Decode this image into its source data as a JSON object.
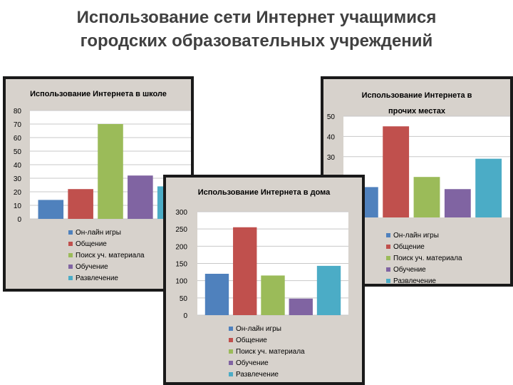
{
  "slide": {
    "title_line1": "Использование сети Интернет учащимися",
    "title_line2": "городских образовательных учреждений"
  },
  "colors": [
    "#4f81bd",
    "#c0504d",
    "#9bbb59",
    "#8064a2",
    "#4bacc6"
  ],
  "chart_data": [
    {
      "id": "school",
      "type": "bar",
      "title": "Использование Интернета в школе",
      "categories": [
        "Он-лайн игры",
        "Общение",
        "Поиск уч. материала",
        "Обучение",
        "Развлечение"
      ],
      "values": [
        14,
        22,
        70,
        32,
        24
      ],
      "ylim": [
        0,
        80
      ],
      "yticks": [
        0,
        10,
        20,
        30,
        40,
        50,
        60,
        70,
        80
      ],
      "legend_position": "bottom"
    },
    {
      "id": "other",
      "type": "bar",
      "title_line1": "Использование Интернета в",
      "title_line2": "прочих местах",
      "categories": [
        "Он-лайн игры",
        "Общение",
        "Поиск уч. материала",
        "Обучение",
        "Развлечение"
      ],
      "values": [
        15,
        45,
        20,
        14,
        29
      ],
      "ylim": [
        0,
        50
      ],
      "yticks": [
        30,
        40,
        50
      ],
      "legend_position": "bottom"
    },
    {
      "id": "home",
      "type": "bar",
      "title": "Использование Интернета в дома",
      "categories": [
        "Он-лайн игры",
        "Общение",
        "Поиск уч. материала",
        "Обучение",
        "Развлечение"
      ],
      "values": [
        120,
        255,
        115,
        48,
        143
      ],
      "ylim": [
        0,
        300
      ],
      "yticks": [
        0,
        50,
        100,
        150,
        200,
        250,
        300
      ],
      "legend_position": "bottom"
    }
  ]
}
